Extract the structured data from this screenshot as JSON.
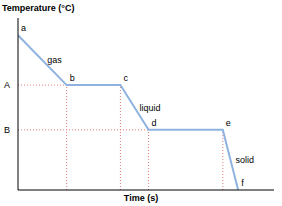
{
  "chart_data": {
    "type": "line",
    "x_label": "Time (s)",
    "y_label": "Temperature (°C)",
    "x": [
      0,
      19,
      40,
      51,
      80,
      86
    ],
    "values": [
      90,
      61,
      61,
      35,
      35,
      0
    ],
    "point_labels": [
      "a",
      "b",
      "c",
      "d",
      "e",
      "f"
    ],
    "annotations": [
      "gas",
      "liquid",
      "solid"
    ],
    "xlim": [
      0,
      100
    ],
    "ylim": [
      0,
      100
    ],
    "yticks": [
      {
        "value": 61,
        "label": "A"
      },
      {
        "value": 35,
        "label": "B"
      }
    ],
    "tick_labels": "y",
    "grid": false,
    "color": "#8fb3e0"
  }
}
